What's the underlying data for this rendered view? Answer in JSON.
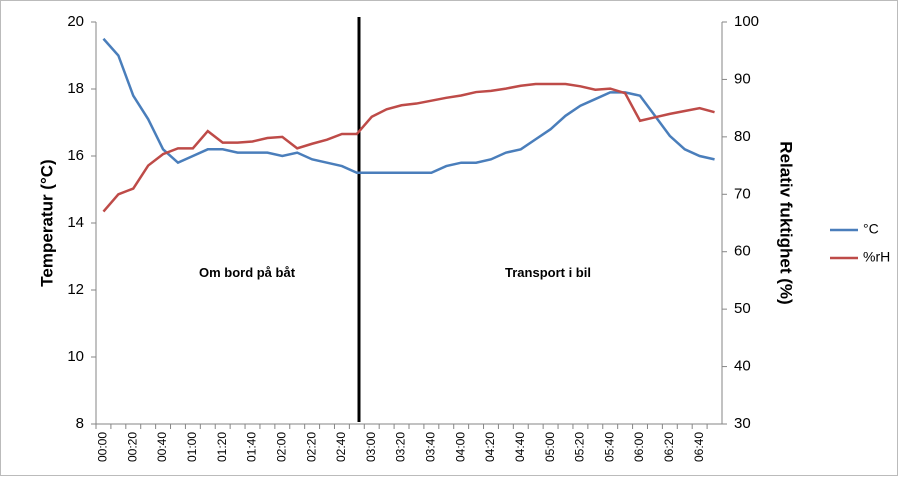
{
  "chart_data": {
    "type": "line",
    "categories": [
      "00:00",
      null,
      "00:20",
      null,
      "00:40",
      null,
      "01:00",
      null,
      "01:20",
      null,
      "01:40",
      null,
      "02:00",
      null,
      "02:20",
      null,
      "02:40",
      null,
      "03:00",
      null,
      "03:20",
      null,
      "03:40",
      null,
      "04:00",
      null,
      "04:20",
      null,
      "04:40",
      null,
      "05:00",
      null,
      "05:20",
      null,
      "05:40",
      null,
      "06:00",
      null,
      "06:20",
      null,
      "06:40",
      null
    ],
    "series": [
      {
        "name": "°C",
        "color": "#4a7ebb",
        "axis": "y",
        "values": [
          19.5,
          19.0,
          17.8,
          17.1,
          16.2,
          15.8,
          16.0,
          16.2,
          16.2,
          16.1,
          16.1,
          16.1,
          16.0,
          16.1,
          15.9,
          15.8,
          15.7,
          15.5,
          15.5,
          15.5,
          15.5,
          15.5,
          15.5,
          15.7,
          15.8,
          15.8,
          15.9,
          16.1,
          16.2,
          16.5,
          16.8,
          17.2,
          17.5,
          17.7,
          17.9,
          17.9,
          17.8,
          17.2,
          16.6,
          16.2,
          16.0,
          15.9
        ]
      },
      {
        "name": "%rH",
        "color": "#be4b48",
        "axis": "y2",
        "values": [
          67,
          70,
          71,
          75,
          77,
          78,
          78,
          81,
          79,
          79,
          79.2,
          79.8,
          80,
          78,
          78.8,
          79.5,
          80.5,
          80.5,
          83.5,
          84.8,
          85.5,
          85.8,
          86.3,
          86.8,
          87.2,
          87.8,
          88,
          88.4,
          88.9,
          89.2,
          89.2,
          89.2,
          88.8,
          88.2,
          88.4,
          87.6,
          82.8,
          83.4,
          84,
          84.5,
          85,
          84.3
        ]
      }
    ],
    "ylabel": "Temperatur (°C)",
    "y2label": "Relativ fuktighet (%)",
    "ylim": [
      8,
      20
    ],
    "yticks": [
      8,
      10,
      12,
      14,
      16,
      18,
      20
    ],
    "y2lim": [
      30,
      100
    ],
    "y2ticks": [
      30,
      40,
      50,
      60,
      70,
      80,
      90,
      100
    ],
    "annotations": [
      "Om bord på båt",
      "Transport i bil"
    ],
    "legend": "right"
  }
}
